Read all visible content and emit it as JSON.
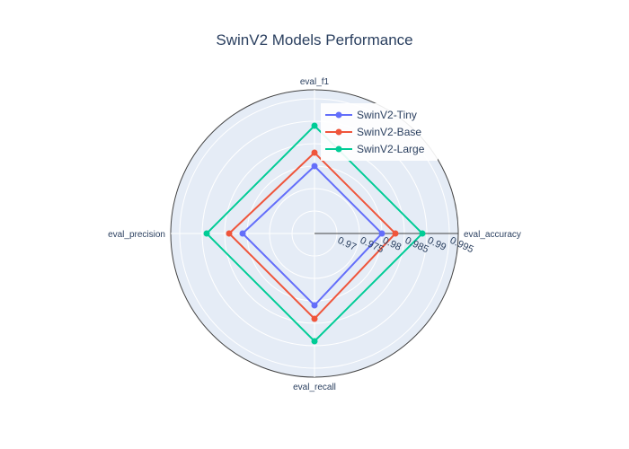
{
  "chart_data": {
    "type": "radar",
    "title": "SwinV2 Models Performance",
    "axes": [
      "eval_accuracy",
      "eval_f1",
      "eval_precision",
      "eval_recall"
    ],
    "radial_range": [
      0.965,
      0.997
    ],
    "radial_ticks": [
      "0.97",
      "0.975",
      "0.98",
      "0.985",
      "0.99",
      "0.995"
    ],
    "radial_tick_values": [
      0.97,
      0.975,
      0.98,
      0.985,
      0.99,
      0.995
    ],
    "grid": true,
    "legend_position": "top-right",
    "series": [
      {
        "name": "SwinV2-Tiny",
        "color": "#636efa",
        "values": [
          0.98,
          0.98,
          0.981,
          0.981
        ]
      },
      {
        "name": "SwinV2-Base",
        "color": "#ef553b",
        "values": [
          0.983,
          0.983,
          0.984,
          0.984
        ]
      },
      {
        "name": "SwinV2-Large",
        "color": "#00cc96",
        "values": [
          0.989,
          0.989,
          0.989,
          0.989
        ]
      }
    ]
  }
}
